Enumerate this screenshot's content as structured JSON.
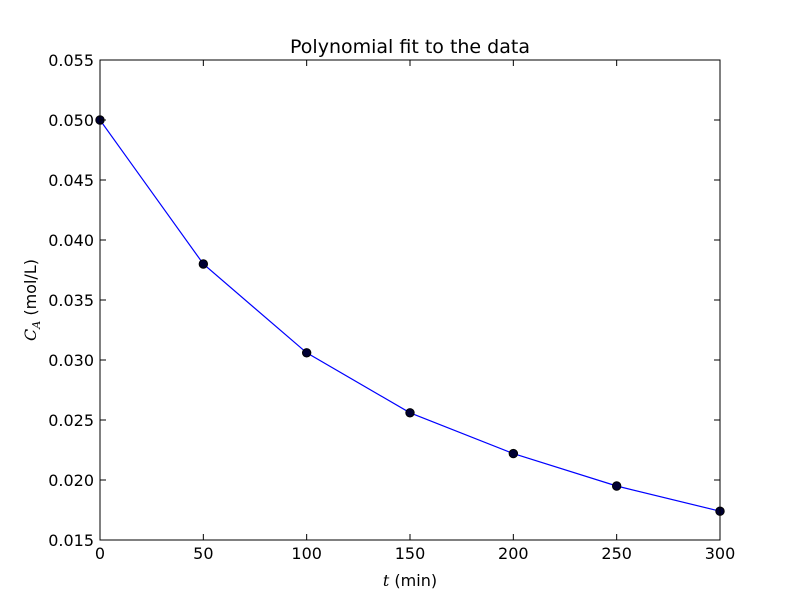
{
  "chart_data": {
    "type": "line",
    "title": "Polynomial fit to the data",
    "xlabel": {
      "symbol": "t",
      "text": " (min)"
    },
    "ylabel": {
      "symbol": "C",
      "subscript": "A",
      "text": " (mol/L)"
    },
    "xlim": [
      0,
      300
    ],
    "ylim": [
      0.015,
      0.055
    ],
    "xticks": [
      0,
      50,
      100,
      150,
      200,
      250,
      300
    ],
    "xtick_labels": [
      "0",
      "50",
      "100",
      "150",
      "200",
      "250",
      "300"
    ],
    "yticks": [
      0.015,
      0.02,
      0.025,
      0.03,
      0.035,
      0.04,
      0.045,
      0.05,
      0.055
    ],
    "ytick_labels": [
      "0.015",
      "0.020",
      "0.025",
      "0.030",
      "0.035",
      "0.040",
      "0.045",
      "0.050",
      "0.055"
    ],
    "grid": false,
    "series": [
      {
        "style": "markers",
        "color": "#000000",
        "x": [
          0,
          50,
          100,
          150,
          200,
          250,
          300
        ],
        "y": [
          0.05,
          0.038,
          0.0306,
          0.0256,
          0.0222,
          0.0195,
          0.0174
        ]
      },
      {
        "style": "line",
        "color": "#0000ff",
        "x": [
          0,
          50,
          100,
          150,
          200,
          250,
          300
        ],
        "y": [
          0.05,
          0.038,
          0.0306,
          0.0256,
          0.0222,
          0.0195,
          0.0174
        ]
      }
    ]
  }
}
